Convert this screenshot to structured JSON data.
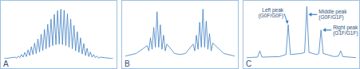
{
  "chart_data": [
    {
      "type": "line",
      "title": "A",
      "color": "#3f7fc1",
      "tick_labels": false,
      "xlim": [
        0,
        100
      ],
      "ylim": [
        0,
        105
      ],
      "x": [
        0,
        10,
        11.5,
        13,
        14.5,
        16,
        17.5,
        19,
        20.5,
        22,
        23.5,
        25,
        26.5,
        28,
        29.5,
        31,
        32.5,
        34,
        35.5,
        37,
        38.5,
        40,
        41.5,
        43,
        44.5,
        46,
        47.5,
        49,
        50.5,
        52,
        53.5,
        55,
        56.5,
        58,
        59.5,
        61,
        62.5,
        64,
        65.5,
        67,
        68.5,
        70,
        71.5,
        73,
        74.5,
        76,
        77.5,
        79,
        80.5,
        82,
        83.5,
        85,
        86.5,
        88,
        100
      ],
      "values": [
        0,
        3,
        1,
        5,
        2,
        8,
        3,
        12,
        4,
        17,
        6,
        23,
        8,
        30,
        10,
        38,
        13,
        47,
        16,
        56,
        19,
        66,
        22,
        76,
        25,
        85,
        27,
        92,
        28,
        95,
        27,
        93,
        25,
        86,
        22,
        76,
        19,
        64,
        15,
        52,
        12,
        40,
        9,
        29,
        6,
        20,
        4,
        13,
        3,
        8,
        2,
        5,
        1,
        3,
        0
      ]
    },
    {
      "type": "line",
      "title": "B",
      "color": "#3f7fc1",
      "tick_labels": false,
      "xlim": [
        0,
        100
      ],
      "ylim": [
        0,
        105
      ],
      "x": [
        0,
        10,
        20,
        21.5,
        23,
        24.5,
        26,
        27.5,
        29,
        30.5,
        32,
        33.5,
        35,
        36.5,
        38,
        45,
        50,
        55,
        62,
        63.5,
        65,
        66.5,
        68,
        69.5,
        71,
        72.5,
        74,
        75.5,
        77,
        78.5,
        80,
        90,
        100
      ],
      "values": [
        5,
        10,
        25,
        15,
        40,
        18,
        60,
        22,
        90,
        22,
        65,
        18,
        45,
        15,
        28,
        10,
        8,
        10,
        28,
        15,
        45,
        18,
        70,
        22,
        95,
        22,
        72,
        18,
        48,
        15,
        30,
        10,
        5
      ]
    },
    {
      "type": "line",
      "title": "C",
      "color": "#3f7fc1",
      "tick_labels": false,
      "xlim": [
        0,
        100
      ],
      "ylim": [
        0,
        105
      ],
      "x": [
        0,
        10,
        12,
        14,
        30,
        36,
        38,
        40,
        50,
        53,
        55,
        57,
        64,
        66,
        68,
        70,
        80,
        84,
        86,
        88,
        100
      ],
      "values": [
        2,
        3,
        15,
        3,
        4,
        8,
        65,
        8,
        10,
        12,
        100,
        12,
        8,
        10,
        55,
        10,
        4,
        5,
        15,
        4,
        2
      ],
      "annotations": [
        {
          "lines": [
            "Left peak",
            "(G0F/G0F)"
          ],
          "x": 38,
          "y": 65
        },
        {
          "lines": [
            "Middle peak",
            "(G0F/G1F)"
          ],
          "x": 55,
          "y": 100
        },
        {
          "lines": [
            "Right peak",
            "(G1F/G1F)"
          ],
          "x": 68,
          "y": 55
        }
      ]
    }
  ]
}
